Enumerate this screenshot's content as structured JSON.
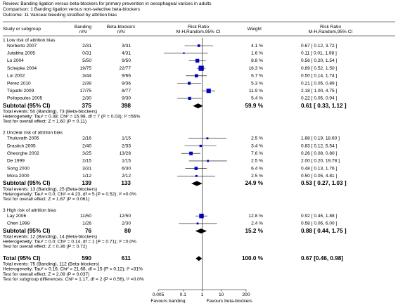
{
  "chart_data": {
    "type": "forest",
    "header": [
      "Review:   Banding ligation versus beta-blockers for primary prevention in oesophageal varices in adults",
      "Comparison:  1 Banding ligation versus non-selective beta-blockers",
      "Outcome:  11 Variceal bleeding stratified by attrition bias"
    ],
    "columns": {
      "study": "Study or subgroup",
      "banding": [
        "Banding",
        "n/N"
      ],
      "beta": [
        "Beta-blockers",
        "n/N"
      ],
      "plot": [
        "Risk Ratio",
        "M-H,Random,95% CI"
      ],
      "weight": "Weight",
      "ci": [
        "Risk Ratio",
        "M-H,Random,95% CI"
      ]
    },
    "groups": [
      {
        "label": "1 Low risk of attrition bias",
        "studies": [
          {
            "name": "Norberto 2007",
            "banding": "2/31",
            "beta": "3/31",
            "weight": 4.1,
            "weight_label": "4.1 %",
            "rr": 0.67,
            "lo": 0.12,
            "hi": 3.72,
            "ci_label": "0.67 [ 0.12, 3.72 ]"
          },
          {
            "name": "Jutabha 2005",
            "banding": "0/31",
            "beta": "4/31",
            "weight": 1.6,
            "weight_label": "1.6 %",
            "rr": 0.11,
            "lo": 0.01,
            "hi": 1.98,
            "ci_label": "0.11 [ 0.01, 1.98 ]"
          },
          {
            "name": "Lo 2004",
            "banding": "5/50",
            "beta": "9/50",
            "weight": 8.8,
            "weight_label": "8.8 %",
            "rr": 0.56,
            "lo": 0.2,
            "hi": 1.54,
            "ci_label": "0.56 [ 0.20, 1.54 ]"
          },
          {
            "name": "Schepke 2004",
            "banding": "19/75",
            "beta": "22/77",
            "weight": 16.3,
            "weight_label": "16.3 %",
            "rr": 0.89,
            "lo": 0.52,
            "hi": 1.5,
            "ci_label": "0.89 [ 0.52, 1.50 ]"
          },
          {
            "name": "Lui 2002",
            "banding": "3/44",
            "beta": "9/66",
            "weight": 6.7,
            "weight_label": "6.7 %",
            "rr": 0.5,
            "lo": 0.14,
            "hi": 1.74,
            "ci_label": "0.50 [ 0.14, 1.74 ]"
          },
          {
            "name": "Perez 2010",
            "banding": "2/39",
            "beta": "9/36",
            "weight": 5.3,
            "weight_label": "5.3 %",
            "rr": 0.21,
            "lo": 0.05,
            "hi": 0.89,
            "ci_label": "0.21 [ 0.05, 0.89 ]"
          },
          {
            "name": "Tripathi 2009",
            "banding": "17/75",
            "beta": "8/77",
            "weight": 11.9,
            "weight_label": "11.9 %",
            "rr": 2.18,
            "lo": 1.0,
            "hi": 4.75,
            "ci_label": "2.18 [ 1.00, 4.75 ]"
          },
          {
            "name": "Psilopoulos 2005",
            "banding": "2/30",
            "beta": "9/30",
            "weight": 5.4,
            "weight_label": "5.4 %",
            "rr": 0.22,
            "lo": 0.05,
            "hi": 0.94,
            "ci_label": "0.22 [ 0.05, 0.94 ]"
          }
        ],
        "subtotal": {
          "label": "Subtotal (95% CI)",
          "banding": 375,
          "beta": 398,
          "weight": 59.9,
          "weight_label": "59.9 %",
          "rr": 0.61,
          "lo": 0.33,
          "hi": 1.12,
          "ci_label": "0.61 [ 0.33, 1.12 ]"
        },
        "notes": [
          "Total events: 50 (Banding), 73 (Beta-blockers)",
          "Heterogeneity: Tau² = 0.38; Chi² = 15.98, df = 7 (P = 0.03); I² =56%",
          "Test for overall effect: Z = 1.60 (P = 0.11)"
        ]
      },
      {
        "label": "2 Unclear risk of attrition bias",
        "studies": [
          {
            "name": "Thuluvath 2005",
            "banding": "2/16",
            "beta": "1/15",
            "weight": 2.5,
            "weight_label": "2.5 %",
            "rr": 1.88,
            "lo": 0.19,
            "hi": 18.6,
            "ci_label": "1.88 [ 0.19, 18.60 ]"
          },
          {
            "name": "Drastich 2005",
            "banding": "2/40",
            "beta": "2/33",
            "weight": 3.4,
            "weight_label": "3.4 %",
            "rr": 0.83,
            "lo": 0.12,
            "hi": 5.54,
            "ci_label": "0.83 [ 0.12, 5.54 ]"
          },
          {
            "name": "Gheorghe 2002",
            "banding": "3/25",
            "beta": "13/28",
            "weight": 7.6,
            "weight_label": "7.6 %",
            "rr": 0.26,
            "lo": 0.08,
            "hi": 0.8,
            "ci_label": "0.26 [ 0.08, 0.80 ]"
          },
          {
            "name": "De 1999",
            "banding": "2/15",
            "beta": "1/15",
            "weight": 2.5,
            "weight_label": "2.5 %",
            "rr": 2.0,
            "lo": 0.2,
            "hi": 19.78,
            "ci_label": "2.00 [ 0.20, 19.78 ]"
          },
          {
            "name": "Song 2000",
            "banding": "3/31",
            "beta": "6/30",
            "weight": 6.4,
            "weight_label": "6.4 %",
            "rr": 0.48,
            "lo": 0.13,
            "hi": 1.76,
            "ci_label": "0.48 [ 0.13, 1.76 ]"
          },
          {
            "name": "Mora 2000",
            "banding": "1/12",
            "beta": "2/12",
            "weight": 2.5,
            "weight_label": "2.5 %",
            "rr": 0.5,
            "lo": 0.05,
            "hi": 4.81,
            "ci_label": "0.50 [ 0.05, 4.81 ]"
          }
        ],
        "subtotal": {
          "label": "Subtotal (95% CI)",
          "banding": 139,
          "beta": 133,
          "weight": 24.9,
          "weight_label": "24.9 %",
          "rr": 0.53,
          "lo": 0.27,
          "hi": 1.03,
          "ci_label": "0.53 [ 0.27, 1.03 ]"
        },
        "notes": [
          "Total events: 13 (Banding), 25 (Beta-blockers)",
          "Heterogeneity: Tau² = 0.0; Chi² = 4.23, df = 5 (P = 0.52); I² =0.0%",
          "Test for overall effect: Z = 1.87 (P = 0.061)"
        ]
      },
      {
        "label": "3 High risk of attrition bias",
        "studies": [
          {
            "name": "Lay 2006",
            "banding": "11/50",
            "beta": "12/50",
            "weight": 12.8,
            "weight_label": "12.8 %",
            "rr": 0.92,
            "lo": 0.45,
            "hi": 1.88,
            "ci_label": "0.92 [ 0.45, 1.88 ]"
          },
          {
            "name": "Chen 1998",
            "banding": "1/26",
            "beta": "2/30",
            "weight": 2.4,
            "weight_label": "2.4 %",
            "rr": 0.58,
            "lo": 0.06,
            "hi": 6.0,
            "ci_label": "0.58 [ 0.06, 6.00 ]"
          }
        ],
        "subtotal": {
          "label": "Subtotal (95% CI)",
          "banding": 76,
          "beta": 80,
          "weight": 15.2,
          "weight_label": "15.2 %",
          "rr": 0.88,
          "lo": 0.44,
          "hi": 1.75,
          "ci_label": "0.88 [ 0.44, 1.75 ]"
        },
        "notes": [
          "Total events: 12 (Banding), 14 (Beta-blockers)",
          "Heterogeneity: Tau² = 0.0; Chi² = 0.14, df = 1 (P = 0.71); I² =0.0%",
          "Test for overall effect: Z = 0.36 (P = 0.72)"
        ]
      }
    ],
    "total": {
      "label": "Total (95% CI)",
      "banding": 590,
      "beta": 611,
      "weight": 100.0,
      "weight_label": "100.0 %",
      "rr": 0.67,
      "lo": 0.46,
      "hi": 0.98,
      "ci_label": "0.67 [0.46, 0.98]",
      "notes": [
        "Total events: 75 (Banding), 112 (Beta-blockers)",
        "Heterogeneity: Tau² = 0.16; Chi² = 21.68, df = 15 (P = 0.12); I² =31%",
        "Test for overall effect: Z = 2.09 (P = 0.037)",
        "Test for subgroup differences: Chi² = 1.17, df = 2 (P = 0.56), I² =0.0%"
      ]
    },
    "xlim": [
      0.005,
      200
    ],
    "xticks": [
      0.005,
      0.1,
      1,
      10,
      200
    ],
    "log_x": true,
    "favours": [
      "Favours banding",
      "Favours beta-blockers"
    ],
    "study_color": "#0000cc",
    "diamond_color": "#000000"
  }
}
